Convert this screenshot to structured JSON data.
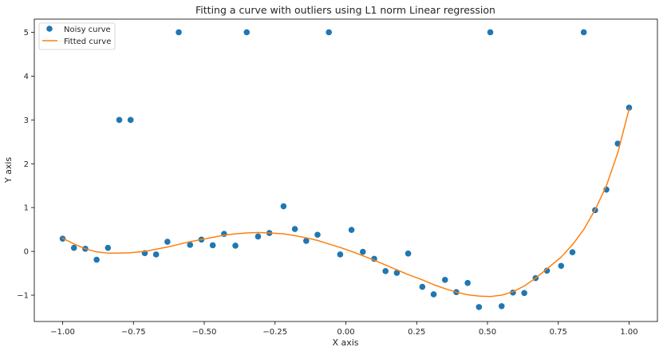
{
  "chart_data": {
    "type": "scatter",
    "title": "Fitting a curve with outliers using L1 norm Linear regression",
    "xlabel": "X axis",
    "ylabel": "Y axis",
    "xlim": [
      -1.1,
      1.1
    ],
    "ylim": [
      -1.6,
      5.3
    ],
    "x_ticks": [
      -1.0,
      -0.75,
      -0.5,
      -0.25,
      0.0,
      0.25,
      0.5,
      0.75,
      1.0
    ],
    "x_tick_labels": [
      "−1.00",
      "−0.75",
      "−0.50",
      "−0.25",
      "0.00",
      "0.25",
      "0.50",
      "0.75",
      "1.00"
    ],
    "y_ticks": [
      -1,
      0,
      1,
      2,
      3,
      4,
      5
    ],
    "y_tick_labels": [
      "−1",
      "0",
      "1",
      "2",
      "3",
      "4",
      "5"
    ],
    "grid": false,
    "legend": "upper-left",
    "series": [
      {
        "name": "Noisy curve",
        "kind": "scatter",
        "color": "#1f77b4",
        "x": [
          -1.0,
          -0.96,
          -0.92,
          -0.88,
          -0.84,
          -0.8,
          -0.76,
          -0.71,
          -0.67,
          -0.63,
          -0.59,
          -0.55,
          -0.51,
          -0.47,
          -0.43,
          -0.39,
          -0.35,
          -0.31,
          -0.27,
          -0.22,
          -0.18,
          -0.14,
          -0.1,
          -0.06,
          -0.02,
          0.02,
          0.06,
          0.1,
          0.14,
          0.18,
          0.22,
          0.27,
          0.31,
          0.35,
          0.39,
          0.43,
          0.47,
          0.51,
          0.55,
          0.59,
          0.63,
          0.67,
          0.71,
          0.76,
          0.8,
          0.84,
          0.88,
          0.92,
          0.96,
          1.0
        ],
        "y": [
          0.29,
          0.08,
          0.06,
          -0.19,
          0.08,
          3.0,
          3.0,
          -0.04,
          -0.07,
          0.22,
          5.0,
          0.15,
          0.27,
          0.14,
          0.4,
          0.13,
          5.0,
          0.34,
          0.42,
          1.03,
          0.51,
          0.24,
          0.38,
          5.0,
          -0.07,
          0.49,
          -0.01,
          -0.17,
          -0.45,
          -0.49,
          -0.05,
          -0.81,
          -0.98,
          -0.65,
          -0.93,
          -0.72,
          -1.27,
          5.0,
          -1.25,
          -0.94,
          -0.95,
          -0.61,
          -0.44,
          -0.33,
          -0.02,
          5.0,
          0.94,
          1.41,
          2.46,
          3.28
        ]
      },
      {
        "name": "Fitted curve",
        "kind": "line",
        "color": "#ff7f0e",
        "x": [
          -1.0,
          -0.96,
          -0.92,
          -0.88,
          -0.84,
          -0.8,
          -0.76,
          -0.71,
          -0.67,
          -0.63,
          -0.59,
          -0.55,
          -0.51,
          -0.47,
          -0.43,
          -0.39,
          -0.35,
          -0.31,
          -0.27,
          -0.22,
          -0.18,
          -0.14,
          -0.1,
          -0.06,
          -0.02,
          0.02,
          0.06,
          0.1,
          0.14,
          0.18,
          0.22,
          0.27,
          0.31,
          0.35,
          0.39,
          0.43,
          0.47,
          0.51,
          0.55,
          0.59,
          0.63,
          0.67,
          0.71,
          0.76,
          0.8,
          0.84,
          0.88,
          0.92,
          0.96,
          1.0
        ],
        "y": [
          0.3,
          0.17,
          0.06,
          -0.01,
          -0.04,
          -0.04,
          -0.03,
          0.0,
          0.05,
          0.1,
          0.16,
          0.22,
          0.27,
          0.32,
          0.37,
          0.4,
          0.42,
          0.43,
          0.42,
          0.4,
          0.36,
          0.31,
          0.25,
          0.17,
          0.09,
          0.0,
          -0.1,
          -0.2,
          -0.31,
          -0.42,
          -0.53,
          -0.65,
          -0.76,
          -0.85,
          -0.93,
          -0.99,
          -1.02,
          -1.03,
          -1.0,
          -0.92,
          -0.79,
          -0.61,
          -0.4,
          -0.13,
          0.15,
          0.5,
          0.95,
          1.5,
          2.25,
          3.25
        ]
      }
    ]
  }
}
